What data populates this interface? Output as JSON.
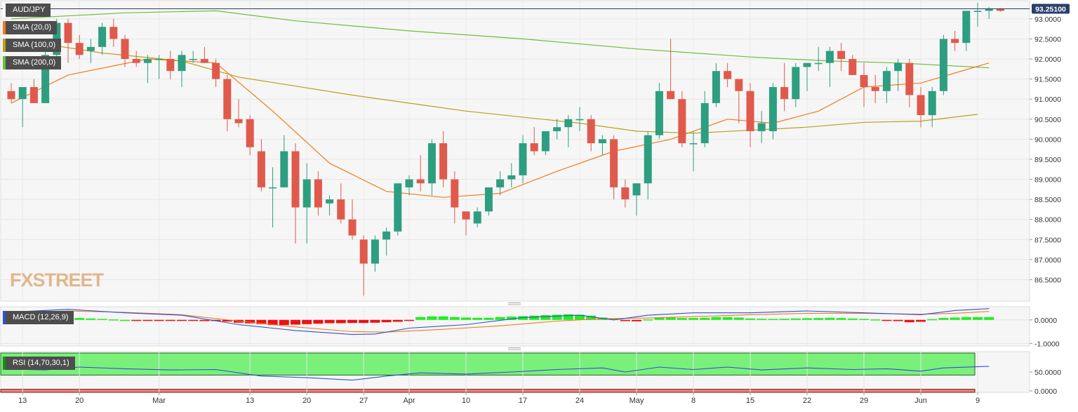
{
  "chart_data": {
    "type": "candlestick",
    "symbol": "AUD/JPY",
    "last_price": "93.25100",
    "indicators": [
      {
        "label": "SMA (20,0)",
        "color": "#f07d1a"
      },
      {
        "label": "SMA (100,0)",
        "color": "#b8a11c"
      },
      {
        "label": "SMA (200,0)",
        "color": "#6cbf3a"
      }
    ],
    "price_axis": {
      "min": 86.0,
      "max": 93.4,
      "ticks": [
        "93.0000",
        "92.5000",
        "92.0000",
        "91.5000",
        "91.0000",
        "90.5000",
        "90.0000",
        "89.5000",
        "89.0000",
        "88.5000",
        "88.0000",
        "87.5000",
        "87.0000",
        "86.5000"
      ]
    },
    "x_ticks": [
      {
        "i": 1,
        "label": "13"
      },
      {
        "i": 6,
        "label": "20"
      },
      {
        "i": 13,
        "label": "Mar"
      },
      {
        "i": 21,
        "label": "13"
      },
      {
        "i": 26,
        "label": "20"
      },
      {
        "i": 31,
        "label": "27"
      },
      {
        "i": 35,
        "label": "Apr"
      },
      {
        "i": 40,
        "label": "10"
      },
      {
        "i": 45,
        "label": "17"
      },
      {
        "i": 50,
        "label": "24"
      },
      {
        "i": 55,
        "label": "May"
      },
      {
        "i": 60,
        "label": "8"
      },
      {
        "i": 65,
        "label": "15"
      },
      {
        "i": 70,
        "label": "22"
      },
      {
        "i": 75,
        "label": "29"
      },
      {
        "i": 80,
        "label": "Jun"
      },
      {
        "i": 85,
        "label": "9"
      }
    ],
    "candles": [
      [
        91.2,
        91.4,
        90.9,
        91.0
      ],
      [
        91.0,
        91.3,
        90.3,
        91.3
      ],
      [
        91.3,
        91.5,
        90.9,
        90.9
      ],
      [
        90.9,
        92.2,
        90.9,
        92.1
      ],
      [
        92.1,
        93.0,
        92.0,
        92.9
      ],
      [
        92.9,
        93.0,
        91.9,
        92.4
      ],
      [
        92.4,
        92.6,
        92.0,
        92.1
      ],
      [
        92.2,
        92.5,
        91.9,
        92.3
      ],
      [
        92.3,
        92.9,
        92.1,
        92.8
      ],
      [
        92.8,
        93.0,
        92.3,
        92.5
      ],
      [
        92.5,
        92.6,
        91.8,
        92.0
      ],
      [
        92.0,
        92.2,
        91.8,
        91.9
      ],
      [
        91.9,
        92.1,
        91.4,
        92.0
      ],
      [
        92.0,
        92.1,
        91.5,
        92.0
      ],
      [
        92.0,
        92.2,
        91.5,
        91.7
      ],
      [
        91.7,
        92.2,
        91.3,
        92.1
      ],
      [
        92.0,
        92.2,
        91.9,
        92.0
      ],
      [
        92.0,
        92.3,
        91.9,
        91.9
      ],
      [
        91.9,
        92.0,
        91.3,
        91.5
      ],
      [
        91.5,
        91.6,
        90.2,
        90.5
      ],
      [
        90.5,
        91.0,
        90.3,
        90.4
      ],
      [
        90.5,
        90.6,
        89.6,
        89.8
      ],
      [
        89.7,
        90.0,
        88.7,
        88.8
      ],
      [
        88.8,
        89.3,
        87.8,
        88.8
      ],
      [
        88.8,
        90.1,
        88.8,
        89.7
      ],
      [
        89.7,
        89.9,
        87.4,
        88.3
      ],
      [
        88.3,
        89.4,
        87.4,
        89.0
      ],
      [
        89.0,
        89.2,
        88.1,
        88.3
      ],
      [
        88.4,
        88.6,
        88.1,
        88.5
      ],
      [
        88.5,
        88.9,
        87.9,
        88.0
      ],
      [
        88.0,
        88.5,
        87.5,
        87.6
      ],
      [
        87.5,
        87.6,
        86.1,
        86.9
      ],
      [
        86.9,
        87.6,
        86.7,
        87.5
      ],
      [
        87.5,
        87.8,
        87.1,
        87.7
      ],
      [
        87.7,
        88.9,
        87.6,
        88.9
      ],
      [
        88.8,
        89.1,
        88.6,
        89.0
      ],
      [
        89.0,
        89.6,
        88.7,
        88.9
      ],
      [
        88.9,
        90.0,
        88.6,
        89.9
      ],
      [
        89.9,
        90.2,
        88.8,
        89.0
      ],
      [
        89.0,
        89.2,
        87.9,
        88.3
      ],
      [
        88.2,
        88.2,
        87.6,
        88.0
      ],
      [
        87.9,
        88.3,
        87.8,
        88.2
      ],
      [
        88.2,
        88.8,
        88.1,
        88.8
      ],
      [
        88.8,
        89.2,
        88.6,
        89.0
      ],
      [
        89.0,
        89.4,
        88.8,
        89.1
      ],
      [
        89.1,
        90.1,
        88.9,
        89.9
      ],
      [
        89.9,
        90.3,
        89.6,
        89.7
      ],
      [
        89.7,
        90.2,
        89.6,
        90.2
      ],
      [
        90.2,
        90.5,
        90.0,
        90.3
      ],
      [
        90.3,
        90.6,
        89.8,
        90.5
      ],
      [
        90.5,
        90.8,
        90.2,
        90.5
      ],
      [
        90.5,
        90.6,
        89.7,
        89.9
      ],
      [
        89.9,
        90.1,
        89.6,
        90.0
      ],
      [
        90.0,
        90.1,
        88.5,
        88.8
      ],
      [
        88.8,
        89.0,
        88.3,
        88.5
      ],
      [
        88.6,
        88.9,
        88.1,
        88.9
      ],
      [
        88.9,
        90.2,
        88.5,
        90.1
      ],
      [
        90.1,
        91.4,
        90.0,
        91.2
      ],
      [
        91.2,
        92.5,
        91.0,
        91.0
      ],
      [
        91.0,
        91.2,
        89.8,
        89.9
      ],
      [
        89.9,
        90.2,
        89.2,
        89.9
      ],
      [
        89.9,
        91.2,
        89.8,
        90.9
      ],
      [
        90.9,
        91.9,
        90.8,
        91.7
      ],
      [
        91.7,
        91.9,
        91.3,
        91.5
      ],
      [
        91.5,
        91.5,
        90.4,
        91.2
      ],
      [
        91.2,
        91.4,
        89.8,
        90.2
      ],
      [
        90.2,
        90.7,
        89.9,
        90.4
      ],
      [
        90.2,
        91.4,
        90.0,
        91.3
      ],
      [
        91.3,
        91.9,
        90.7,
        91.0
      ],
      [
        91.0,
        91.9,
        90.8,
        91.8
      ],
      [
        91.8,
        91.9,
        91.2,
        91.9
      ],
      [
        91.9,
        92.3,
        91.7,
        91.9
      ],
      [
        91.9,
        92.3,
        91.3,
        92.2
      ],
      [
        92.2,
        92.4,
        91.7,
        92.0
      ],
      [
        92.0,
        92.1,
        91.6,
        91.6
      ],
      [
        91.6,
        91.9,
        90.8,
        91.3
      ],
      [
        91.3,
        91.6,
        90.9,
        91.2
      ],
      [
        91.2,
        91.8,
        90.9,
        91.7
      ],
      [
        91.7,
        92.0,
        91.2,
        91.9
      ],
      [
        91.9,
        92.0,
        90.8,
        91.1
      ],
      [
        91.1,
        91.3,
        90.3,
        90.6
      ],
      [
        90.6,
        91.3,
        90.3,
        91.2
      ],
      [
        91.2,
        92.6,
        91.1,
        92.5
      ],
      [
        92.5,
        92.7,
        92.2,
        92.4
      ],
      [
        92.4,
        93.2,
        92.2,
        93.2
      ],
      [
        93.2,
        93.4,
        92.8,
        93.2
      ],
      [
        93.2,
        93.3,
        93.0,
        93.25
      ],
      [
        93.25,
        93.27,
        93.18,
        93.2
      ]
    ],
    "sma20": [
      [
        0,
        90.9
      ],
      [
        5,
        91.6
      ],
      [
        12,
        92.0
      ],
      [
        18,
        91.9
      ],
      [
        23,
        90.7
      ],
      [
        28,
        89.4
      ],
      [
        33,
        88.7
      ],
      [
        38,
        88.55
      ],
      [
        43,
        88.65
      ],
      [
        48,
        89.2
      ],
      [
        53,
        89.7
      ],
      [
        58,
        90.0
      ],
      [
        63,
        90.5
      ],
      [
        67,
        90.4
      ],
      [
        71,
        90.7
      ],
      [
        75,
        91.3
      ],
      [
        80,
        91.4
      ],
      [
        83,
        91.65
      ],
      [
        86,
        91.9
      ]
    ],
    "sma100": [
      [
        0,
        92.5
      ],
      [
        8,
        92.15
      ],
      [
        15,
        91.95
      ],
      [
        20,
        91.55
      ],
      [
        30,
        91.1
      ],
      [
        40,
        90.7
      ],
      [
        50,
        90.4
      ],
      [
        55,
        90.2
      ],
      [
        60,
        90.15
      ],
      [
        70,
        90.3
      ],
      [
        75,
        90.42
      ],
      [
        80,
        90.45
      ],
      [
        85,
        90.62
      ]
    ],
    "sma200": [
      [
        0,
        93.0
      ],
      [
        10,
        93.15
      ],
      [
        18,
        93.2
      ],
      [
        25,
        92.95
      ],
      [
        35,
        92.7
      ],
      [
        45,
        92.5
      ],
      [
        55,
        92.25
      ],
      [
        65,
        92.05
      ],
      [
        72,
        91.95
      ],
      [
        78,
        91.9
      ],
      [
        86,
        91.78
      ]
    ],
    "macd": {
      "label": "MACD (12,26,9)",
      "axis_min": -1.05,
      "axis_max": 0.5,
      "ticks": [
        "0.0000",
        "-1.0000"
      ],
      "hist": [
        0.12,
        0.12,
        0.1,
        0.1,
        0.1,
        0.08,
        0.08,
        0.06,
        0.04,
        0.02,
        0.0,
        -0.01,
        -0.01,
        -0.02,
        -0.02,
        -0.03,
        -0.04,
        -0.05,
        -0.05,
        -0.07,
        -0.12,
        -0.15,
        -0.18,
        -0.22,
        -0.22,
        -0.2,
        -0.18,
        -0.16,
        -0.14,
        -0.14,
        -0.13,
        -0.13,
        -0.12,
        -0.1,
        -0.08,
        -0.04,
        0.12,
        0.15,
        0.15,
        0.12,
        0.1,
        0.09,
        0.09,
        0.12,
        0.14,
        0.16,
        0.18,
        0.2,
        0.22,
        0.24,
        0.22,
        0.18,
        0.1,
        0.05,
        -0.05,
        -0.06,
        0.02,
        0.1,
        0.1,
        0.08,
        0.08,
        0.09,
        0.12,
        0.12,
        0.1,
        0.06,
        0.05,
        0.04,
        0.05,
        0.06,
        0.07,
        0.08,
        0.09,
        0.08,
        0.06,
        0.04,
        0.02,
        -0.02,
        -0.05,
        -0.1,
        -0.08,
        0.03,
        0.08,
        0.1,
        0.12,
        0.12,
        0.12
      ],
      "macd_line": [
        [
          0,
          0.33
        ],
        [
          5,
          0.45
        ],
        [
          10,
          0.3
        ],
        [
          15,
          0.2
        ],
        [
          20,
          -0.2
        ],
        [
          25,
          -0.45
        ],
        [
          30,
          -0.62
        ],
        [
          32,
          -0.6
        ],
        [
          35,
          -0.35
        ],
        [
          40,
          -0.2
        ],
        [
          45,
          0.1
        ],
        [
          50,
          0.2
        ],
        [
          53,
          0.0
        ],
        [
          56,
          0.2
        ],
        [
          60,
          0.3
        ],
        [
          65,
          0.3
        ],
        [
          70,
          0.38
        ],
        [
          75,
          0.3
        ],
        [
          80,
          0.22
        ],
        [
          83,
          0.4
        ],
        [
          86,
          0.48
        ]
      ],
      "signal_line": [
        [
          0,
          0.32
        ],
        [
          5,
          0.38
        ],
        [
          10,
          0.32
        ],
        [
          15,
          0.22
        ],
        [
          20,
          -0.05
        ],
        [
          25,
          -0.3
        ],
        [
          30,
          -0.5
        ],
        [
          33,
          -0.52
        ],
        [
          38,
          -0.4
        ],
        [
          43,
          -0.25
        ],
        [
          48,
          -0.05
        ],
        [
          52,
          0.05
        ],
        [
          56,
          0.08
        ],
        [
          60,
          0.14
        ],
        [
          65,
          0.22
        ],
        [
          70,
          0.28
        ],
        [
          75,
          0.28
        ],
        [
          80,
          0.24
        ],
        [
          83,
          0.28
        ],
        [
          86,
          0.36
        ]
      ]
    },
    "rsi": {
      "label": "RSI (14,70,30,1)",
      "axis_min": 0,
      "axis_max": 100,
      "overbought": 70,
      "oversold": 30,
      "ticks": [
        "50.0000",
        "0.0000"
      ],
      "values": [
        [
          0,
          57
        ],
        [
          3,
          55
        ],
        [
          6,
          62
        ],
        [
          10,
          58
        ],
        [
          14,
          55
        ],
        [
          18,
          56
        ],
        [
          22,
          40
        ],
        [
          26,
          36
        ],
        [
          30,
          30
        ],
        [
          33,
          40
        ],
        [
          36,
          48
        ],
        [
          40,
          45
        ],
        [
          44,
          50
        ],
        [
          48,
          56
        ],
        [
          52,
          60
        ],
        [
          54,
          50
        ],
        [
          57,
          62
        ],
        [
          60,
          56
        ],
        [
          63,
          62
        ],
        [
          66,
          55
        ],
        [
          70,
          60
        ],
        [
          74,
          56
        ],
        [
          77,
          58
        ],
        [
          80,
          52
        ],
        [
          82,
          60
        ],
        [
          86,
          64
        ]
      ]
    }
  }
}
